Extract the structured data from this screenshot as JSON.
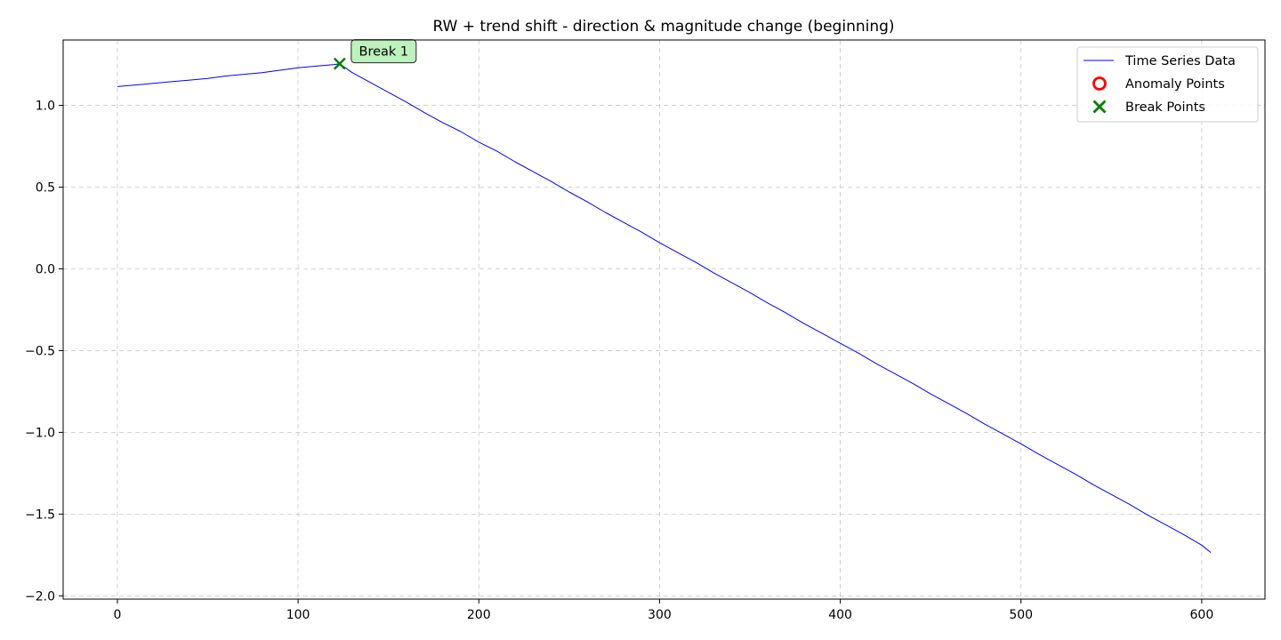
{
  "chart_data": {
    "type": "line",
    "title": "RW + trend shift - direction & magnitude change (beginning)",
    "xlabel": "",
    "ylabel": "",
    "xlim": [
      -30,
      635
    ],
    "ylim": [
      -2.02,
      1.4
    ],
    "xticks": [
      0,
      100,
      200,
      300,
      400,
      500,
      600
    ],
    "yticks": [
      1.0,
      0.5,
      0.0,
      -0.5,
      -1.0,
      -1.5,
      -2.0
    ],
    "ytick_labels": [
      "1.0",
      "0.5",
      "0.0",
      "−0.5",
      "−1.0",
      "−1.5",
      "−2.0"
    ],
    "grid": true,
    "legend_position": "top-right",
    "series": [
      {
        "name": "Time Series Data",
        "color": "#0000ff",
        "style": "line",
        "x": [
          0,
          10,
          20,
          30,
          40,
          50,
          60,
          70,
          80,
          90,
          100,
          110,
          120,
          123,
          130,
          140,
          150,
          160,
          170,
          180,
          190,
          200,
          210,
          220,
          230,
          240,
          250,
          260,
          270,
          280,
          290,
          300,
          310,
          320,
          330,
          340,
          350,
          360,
          370,
          380,
          390,
          400,
          410,
          420,
          430,
          440,
          450,
          460,
          470,
          480,
          490,
          500,
          510,
          520,
          530,
          540,
          550,
          560,
          570,
          580,
          590,
          600,
          605
        ],
        "y": [
          1.115,
          1.125,
          1.135,
          1.145,
          1.155,
          1.165,
          1.18,
          1.19,
          1.2,
          1.215,
          1.23,
          1.24,
          1.25,
          1.255,
          1.2,
          1.14,
          1.08,
          1.02,
          0.955,
          0.895,
          0.84,
          0.775,
          0.72,
          0.655,
          0.595,
          0.535,
          0.47,
          0.41,
          0.345,
          0.285,
          0.225,
          0.16,
          0.1,
          0.04,
          -0.025,
          -0.085,
          -0.145,
          -0.21,
          -0.27,
          -0.335,
          -0.395,
          -0.455,
          -0.515,
          -0.58,
          -0.64,
          -0.7,
          -0.765,
          -0.825,
          -0.885,
          -0.95,
          -1.01,
          -1.07,
          -1.135,
          -1.195,
          -1.255,
          -1.32,
          -1.38,
          -1.44,
          -1.505,
          -1.565,
          -1.625,
          -1.69,
          -1.735
        ]
      },
      {
        "name": "Anomaly Points",
        "color": "#ff0000",
        "style": "circle",
        "x": [],
        "y": []
      },
      {
        "name": "Break Points",
        "color": "#008000",
        "style": "x",
        "x": [
          123
        ],
        "y": [
          1.255
        ]
      }
    ],
    "annotations": [
      {
        "text": "Break 1",
        "x": 123,
        "y": 1.255,
        "background": "#b2f0b2"
      }
    ]
  }
}
